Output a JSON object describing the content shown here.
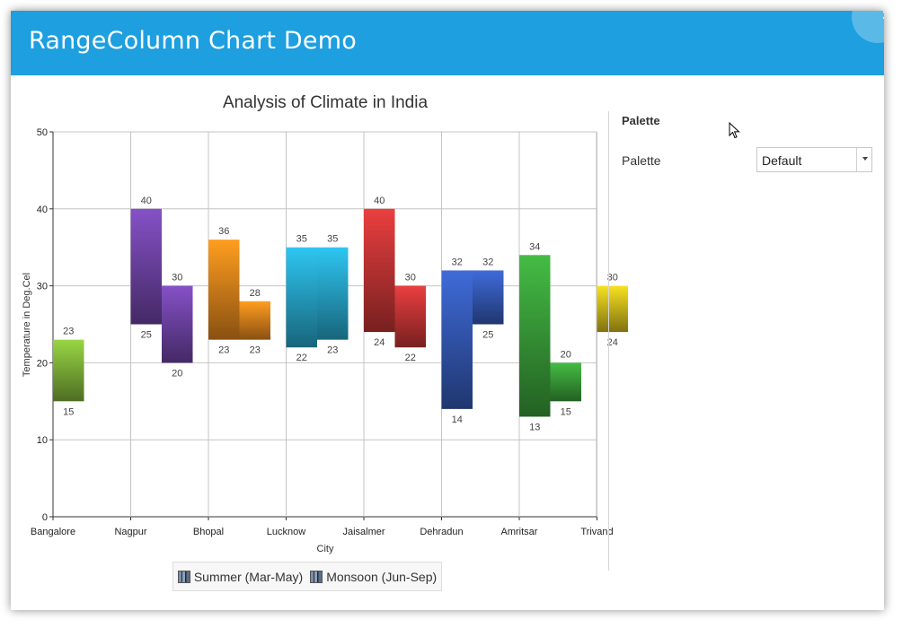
{
  "window": {
    "title": "RangeColumn Chart Demo"
  },
  "panel": {
    "heading": "Palette",
    "palette_label": "Palette",
    "palette_value": "Default"
  },
  "icons": [
    "close-icon",
    "chevron-down-icon",
    "mouse-cursor-icon"
  ],
  "chart_data": {
    "type": "range-bar",
    "title": "Analysis of Climate in India",
    "xlabel": "City",
    "ylabel": "Temperature in Deg.Cel",
    "ylim": [
      0,
      50
    ],
    "yticks": [
      0,
      10,
      20,
      30,
      40,
      50
    ],
    "grid": true,
    "legend": "bottom",
    "categories": [
      "Bangalore",
      "Nagpur",
      "Bhopal",
      "Lucknow",
      "Jaisalmer",
      "Dehradun",
      "Amritsar",
      "Trivand"
    ],
    "category_colors": [
      "#8dc63f",
      "#7b4bb8",
      "#f9921e",
      "#2bb7e0",
      "#d93a3a",
      "#3a63c9",
      "#3fae3f",
      "#e6d01e"
    ],
    "series": [
      {
        "name": "Summer (Mar-May)",
        "low": [
          15,
          25,
          23,
          22,
          24,
          14,
          13,
          24
        ],
        "high": [
          23,
          40,
          36,
          35,
          40,
          32,
          34,
          30
        ]
      },
      {
        "name": "Monsoon (Jun-Sep)",
        "low": [
          null,
          20,
          23,
          23,
          22,
          25,
          15,
          null
        ],
        "high": [
          null,
          30,
          28,
          35,
          30,
          32,
          20,
          null
        ]
      }
    ]
  }
}
